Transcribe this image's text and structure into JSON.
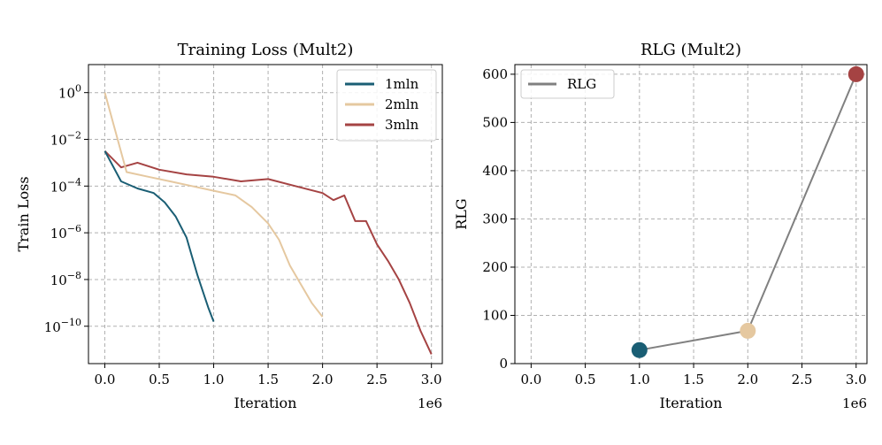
{
  "colors": {
    "series_1mln": "#1a5e74",
    "series_2mln": "#e5c8a0",
    "series_3mln": "#a54343",
    "rlg_line": "#808080"
  },
  "chart_data": [
    {
      "type": "line",
      "title": "Training Loss (Mult2)",
      "xlabel": "Iteration",
      "ylabel": "Train Loss",
      "x_offset_label": "1e6",
      "xlim": [
        -0.15,
        3.1
      ],
      "ylim_log10": [
        -11.6,
        1.2
      ],
      "yscale": "log",
      "grid": true,
      "legend_position": "top-right",
      "x_ticks": [
        0.0,
        0.5,
        1.0,
        1.5,
        2.0,
        2.5,
        3.0
      ],
      "x_tick_labels": [
        "0.0",
        "0.5",
        "1.0",
        "1.5",
        "2.0",
        "2.5",
        "3.0"
      ],
      "y_ticks_exp": [
        0,
        -2,
        -4,
        -6,
        -8,
        -10
      ],
      "y_tick_labels": [
        "10",
        "10",
        "10",
        "10",
        "10",
        "10"
      ],
      "y_tick_exponents": [
        "0",
        "−2",
        "−4",
        "−6",
        "−8",
        "−10"
      ],
      "legend": [
        "1mln",
        "2mln",
        "3mln"
      ],
      "series": [
        {
          "name": "3mln",
          "x": [
            0.0,
            0.15,
            0.3,
            0.5,
            0.75,
            1.0,
            1.25,
            1.5,
            1.75,
            2.0,
            2.1,
            2.2,
            2.3,
            2.4,
            2.5,
            2.6,
            2.7,
            2.8,
            2.9,
            3.0
          ],
          "log10_y": [
            -2.5,
            -3.2,
            -3.0,
            -3.3,
            -3.5,
            -3.6,
            -3.8,
            -3.7,
            -4.0,
            -4.3,
            -4.6,
            -4.4,
            -5.5,
            -5.5,
            -6.5,
            -7.2,
            -8.0,
            -9.0,
            -10.2,
            -11.2
          ]
        },
        {
          "name": "2mln",
          "x": [
            0.0,
            0.2,
            0.4,
            0.6,
            0.8,
            1.0,
            1.2,
            1.35,
            1.5,
            1.6,
            1.7,
            1.8,
            1.9,
            2.0
          ],
          "log10_y": [
            0.0,
            -3.4,
            -3.6,
            -3.8,
            -4.0,
            -4.2,
            -4.4,
            -4.9,
            -5.6,
            -6.3,
            -7.4,
            -8.2,
            -9.0,
            -9.6
          ]
        },
        {
          "name": "1mln",
          "x": [
            0.0,
            0.15,
            0.3,
            0.45,
            0.55,
            0.65,
            0.75,
            0.8,
            0.85,
            0.9,
            0.95,
            1.0
          ],
          "log10_y": [
            -2.5,
            -3.8,
            -4.1,
            -4.3,
            -4.7,
            -5.3,
            -6.2,
            -7.0,
            -7.8,
            -8.5,
            -9.2,
            -9.8
          ]
        }
      ]
    },
    {
      "type": "line",
      "title": "RLG (Mult2)",
      "xlabel": "Iteration",
      "ylabel": "RLG",
      "x_offset_label": "1e6",
      "xlim": [
        -0.15,
        3.1
      ],
      "ylim": [
        0,
        620
      ],
      "grid": true,
      "legend_position": "top-left",
      "x_ticks": [
        0.0,
        0.5,
        1.0,
        1.5,
        2.0,
        2.5,
        3.0
      ],
      "x_tick_labels": [
        "0.0",
        "0.5",
        "1.0",
        "1.5",
        "2.0",
        "2.5",
        "3.0"
      ],
      "y_ticks": [
        0,
        100,
        200,
        300,
        400,
        500,
        600
      ],
      "y_tick_labels": [
        "0",
        "100",
        "200",
        "300",
        "400",
        "500",
        "600"
      ],
      "legend": [
        "RLG"
      ],
      "series": [
        {
          "name": "RLG",
          "x": [
            1.0,
            2.0,
            3.0
          ],
          "y": [
            28,
            68,
            600
          ],
          "point_colors": [
            "#1a5e74",
            "#e5c8a0",
            "#a54343"
          ]
        }
      ]
    }
  ]
}
